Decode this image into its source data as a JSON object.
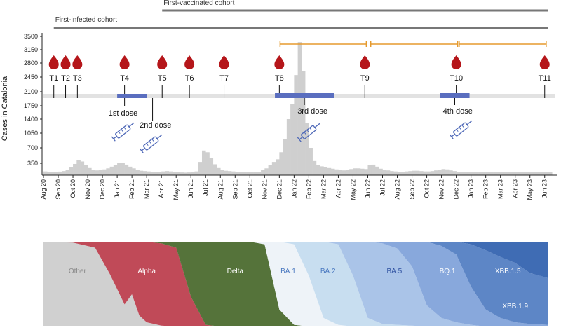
{
  "chart_data": [
    {
      "type": "bar",
      "title": "",
      "xlabel": "",
      "ylabel": "Cases in Catalonia",
      "ylim": [
        0,
        3500
      ],
      "y_ticks": [
        350,
        700,
        1050,
        1400,
        1750,
        2100,
        2450,
        2800,
        3150,
        3500
      ],
      "x_ticks": [
        "Aug 20",
        "Sep 20",
        "Oct 20",
        "Nov 20",
        "Dec 20",
        "Jan 21",
        "Feb 21",
        "Mar 21",
        "Apr 21",
        "May 21",
        "Jun 21",
        "Jul 21",
        "Aug 21",
        "Sep 21",
        "Oct 21",
        "Nov 21",
        "Dec 21",
        "Jan 22",
        "Feb 22",
        "Mar 22",
        "Apr 22",
        "May 22",
        "Jun 22",
        "Jul 22",
        "Aug 22",
        "Sep 22",
        "Oct 22",
        "Nov 22",
        "Dec 22",
        "Jan 23",
        "Feb 23",
        "Mar 23",
        "Apr 23",
        "May 23",
        "Jun 23"
      ],
      "weekly_values": [
        [
          0.0,
          110
        ],
        [
          0.25,
          100
        ],
        [
          0.5,
          95
        ],
        [
          0.75,
          100
        ],
        [
          1.0,
          105
        ],
        [
          1.25,
          120
        ],
        [
          1.5,
          160
        ],
        [
          1.75,
          240
        ],
        [
          2.0,
          330
        ],
        [
          2.25,
          420
        ],
        [
          2.5,
          390
        ],
        [
          2.75,
          300
        ],
        [
          3.0,
          210
        ],
        [
          3.25,
          160
        ],
        [
          3.5,
          140
        ],
        [
          3.75,
          150
        ],
        [
          4.0,
          170
        ],
        [
          4.25,
          200
        ],
        [
          4.5,
          250
        ],
        [
          4.75,
          300
        ],
        [
          5.0,
          350
        ],
        [
          5.25,
          360
        ],
        [
          5.5,
          310
        ],
        [
          5.75,
          250
        ],
        [
          6.0,
          200
        ],
        [
          6.25,
          150
        ],
        [
          6.5,
          130
        ],
        [
          6.75,
          120
        ],
        [
          7.0,
          110
        ],
        [
          7.25,
          100
        ],
        [
          7.5,
          95
        ],
        [
          7.75,
          100
        ],
        [
          8.0,
          110
        ],
        [
          8.25,
          120
        ],
        [
          8.5,
          110
        ],
        [
          8.75,
          100
        ],
        [
          9.0,
          90
        ],
        [
          9.25,
          80
        ],
        [
          9.5,
          75
        ],
        [
          9.75,
          80
        ],
        [
          10.0,
          90
        ],
        [
          10.25,
          110
        ],
        [
          10.5,
          380
        ],
        [
          10.75,
          640
        ],
        [
          11.0,
          600
        ],
        [
          11.25,
          470
        ],
        [
          11.5,
          320
        ],
        [
          11.75,
          210
        ],
        [
          12.0,
          150
        ],
        [
          12.25,
          130
        ],
        [
          12.5,
          120
        ],
        [
          12.75,
          110
        ],
        [
          13.0,
          100
        ],
        [
          13.25,
          95
        ],
        [
          13.5,
          90
        ],
        [
          13.75,
          90
        ],
        [
          14.0,
          90
        ],
        [
          14.25,
          95
        ],
        [
          14.5,
          100
        ],
        [
          14.75,
          150
        ],
        [
          15.0,
          200
        ],
        [
          15.25,
          300
        ],
        [
          15.5,
          380
        ],
        [
          15.75,
          440
        ],
        [
          16.0,
          600
        ],
        [
          16.25,
          900
        ],
        [
          16.5,
          1400
        ],
        [
          16.75,
          1800
        ],
        [
          17.0,
          2500
        ],
        [
          17.25,
          3350
        ],
        [
          17.5,
          2600
        ],
        [
          17.75,
          1300
        ],
        [
          18.0,
          700
        ],
        [
          18.25,
          400
        ],
        [
          18.5,
          300
        ],
        [
          18.75,
          260
        ],
        [
          19.0,
          230
        ],
        [
          19.25,
          210
        ],
        [
          19.5,
          190
        ],
        [
          19.75,
          170
        ],
        [
          20.0,
          150
        ],
        [
          20.25,
          140
        ],
        [
          20.5,
          150
        ],
        [
          20.75,
          180
        ],
        [
          21.0,
          200
        ],
        [
          21.25,
          200
        ],
        [
          21.5,
          190
        ],
        [
          21.75,
          180
        ],
        [
          22.0,
          300
        ],
        [
          22.25,
          310
        ],
        [
          22.5,
          250
        ],
        [
          22.75,
          190
        ],
        [
          23.0,
          160
        ],
        [
          23.25,
          140
        ],
        [
          23.5,
          120
        ],
        [
          23.75,
          110
        ],
        [
          24.0,
          100
        ],
        [
          24.25,
          100
        ],
        [
          24.5,
          110
        ],
        [
          24.75,
          120
        ],
        [
          25.0,
          130
        ],
        [
          25.25,
          130
        ],
        [
          25.5,
          120
        ],
        [
          25.75,
          110
        ],
        [
          26.0,
          110
        ],
        [
          26.25,
          120
        ],
        [
          26.5,
          140
        ],
        [
          26.75,
          160
        ],
        [
          27.0,
          180
        ],
        [
          27.25,
          170
        ],
        [
          27.5,
          140
        ],
        [
          27.75,
          120
        ],
        [
          28.0,
          100
        ],
        [
          28.25,
          100
        ],
        [
          28.5,
          100
        ],
        [
          28.75,
          100
        ],
        [
          29.0,
          100
        ],
        [
          29.25,
          100
        ],
        [
          29.5,
          100
        ],
        [
          29.75,
          100
        ],
        [
          30.0,
          100
        ],
        [
          30.25,
          100
        ],
        [
          30.5,
          100
        ],
        [
          30.75,
          100
        ],
        [
          31.0,
          100
        ],
        [
          31.25,
          100
        ],
        [
          31.5,
          100
        ],
        [
          31.75,
          100
        ],
        [
          32.0,
          100
        ],
        [
          32.25,
          100
        ],
        [
          32.5,
          100
        ],
        [
          32.75,
          100
        ],
        [
          33.0,
          100
        ],
        [
          33.25,
          100
        ],
        [
          33.5,
          100
        ],
        [
          33.75,
          100
        ],
        [
          34.0,
          100
        ],
        [
          34.25,
          100
        ]
      ],
      "sampling_points": [
        {
          "label": "T1",
          "month": 0.7
        },
        {
          "label": "T2",
          "month": 1.5
        },
        {
          "label": "T3",
          "month": 2.3
        },
        {
          "label": "T4",
          "month": 5.5
        },
        {
          "label": "T5",
          "month": 8.05
        },
        {
          "label": "T6",
          "month": 9.9
        },
        {
          "label": "T7",
          "month": 12.25
        },
        {
          "label": "T8",
          "month": 16.0
        },
        {
          "label": "T9",
          "month": 21.8
        },
        {
          "label": "T10",
          "month": 28.0
        },
        {
          "label": "T11",
          "month": 34.0
        }
      ],
      "cohorts": [
        {
          "label": "First-infected cohort",
          "start_month": 0.7,
          "end_month": 34.25
        },
        {
          "label": "First-vaccinated cohort",
          "start_month": 8.05,
          "end_month": 34.25
        }
      ],
      "followup_intervals": [
        {
          "start_month": 16.05,
          "end_month": 21.9
        },
        {
          "start_month": 22.2,
          "end_month": 28.1
        },
        {
          "start_month": 28.2,
          "end_month": 34.1
        }
      ],
      "dose_periods": [
        {
          "label": "1st dose",
          "start_month": 5.0,
          "end_month": 7.0
        },
        {
          "label": "2nd dose",
          "start_month": 5.5,
          "end_month": 8.0
        },
        {
          "label": "3rd dose",
          "start_month": 15.7,
          "end_month": 19.7
        },
        {
          "label": "4th dose",
          "start_month": 26.9,
          "end_month": 28.9
        }
      ],
      "colors": {
        "bars": "#cfcfcf",
        "blood_drop": "#b5161a",
        "dose_bar": "#5a6ebf",
        "followup": "#e59a2e",
        "cohort_line": "#777777",
        "band": "#e2e2e2",
        "syringe": "#4f69b8"
      }
    },
    {
      "type": "area",
      "title": "",
      "xlabel": "",
      "ylabel": "",
      "stacked": true,
      "normalized": true,
      "x_months": [
        0,
        2,
        3.5,
        4.5,
        5.5,
        6,
        6.5,
        7,
        8,
        9,
        10,
        11,
        12,
        13,
        14,
        15,
        16,
        17,
        18,
        19,
        20,
        21,
        22,
        23,
        24,
        25,
        26,
        27,
        28,
        29,
        30,
        31,
        32,
        33,
        34.25
      ],
      "series": [
        {
          "name": "Other",
          "color": "#d0d0d0",
          "values": [
            1.0,
            0.99,
            0.93,
            0.62,
            0.26,
            0.38,
            0.13,
            0.05,
            0.01,
            0,
            0,
            0,
            0,
            0,
            0,
            0,
            0,
            0,
            0,
            0,
            0,
            0,
            0,
            0,
            0,
            0,
            0,
            0,
            0,
            0,
            0,
            0,
            0,
            0,
            0
          ]
        },
        {
          "name": "Alpha",
          "color": "#c04a58",
          "values": [
            0,
            0.01,
            0.07,
            0.38,
            0.74,
            0.62,
            0.87,
            0.95,
            0.97,
            0.93,
            0.35,
            0.02,
            0,
            0,
            0,
            0,
            0,
            0,
            0,
            0,
            0,
            0,
            0,
            0,
            0,
            0,
            0,
            0,
            0,
            0,
            0,
            0,
            0,
            0,
            0
          ]
        },
        {
          "name": "Delta",
          "color": "#55733a",
          "values": [
            0,
            0,
            0,
            0,
            0,
            0,
            0,
            0,
            0.02,
            0.07,
            0.65,
            0.98,
            1.0,
            1.0,
            1.0,
            0.97,
            0.2,
            0.02,
            0,
            0,
            0,
            0,
            0,
            0,
            0,
            0,
            0,
            0,
            0,
            0,
            0,
            0,
            0,
            0,
            0
          ]
        },
        {
          "name": "BA.1",
          "color": "#eef3f8",
          "values": [
            0,
            0,
            0,
            0,
            0,
            0,
            0,
            0,
            0,
            0,
            0,
            0,
            0,
            0,
            0,
            0.03,
            0.8,
            0.95,
            0.6,
            0.1,
            0.02,
            0,
            0,
            0,
            0,
            0,
            0,
            0,
            0,
            0,
            0,
            0,
            0,
            0,
            0
          ]
        },
        {
          "name": "BA.2",
          "color": "#c8def0",
          "values": [
            0,
            0,
            0,
            0,
            0,
            0,
            0,
            0,
            0,
            0,
            0,
            0,
            0,
            0,
            0,
            0,
            0,
            0.03,
            0.4,
            0.9,
            0.95,
            0.6,
            0.1,
            0.03,
            0.02,
            0.01,
            0,
            0,
            0,
            0,
            0,
            0,
            0,
            0,
            0
          ]
        },
        {
          "name": "BA.5",
          "color": "#aac4e8",
          "values": [
            0,
            0,
            0,
            0,
            0,
            0,
            0,
            0,
            0,
            0,
            0,
            0,
            0,
            0,
            0,
            0,
            0,
            0,
            0,
            0,
            0.03,
            0.4,
            0.9,
            0.95,
            0.9,
            0.7,
            0.25,
            0.1,
            0.05,
            0.02,
            0,
            0,
            0,
            0,
            0
          ]
        },
        {
          "name": "BQ.1",
          "color": "#88a8dc",
          "values": [
            0,
            0,
            0,
            0,
            0,
            0,
            0,
            0,
            0,
            0,
            0,
            0,
            0,
            0,
            0,
            0,
            0,
            0,
            0,
            0,
            0,
            0,
            0,
            0.02,
            0.08,
            0.29,
            0.75,
            0.85,
            0.8,
            0.45,
            0.2,
            0.1,
            0.05,
            0.03,
            0.02
          ]
        },
        {
          "name": "XBB.1.5",
          "color": "#5d86c6",
          "values": [
            0,
            0,
            0,
            0,
            0,
            0,
            0,
            0,
            0,
            0,
            0,
            0,
            0,
            0,
            0,
            0,
            0,
            0,
            0,
            0,
            0,
            0,
            0,
            0,
            0,
            0,
            0,
            0.05,
            0.15,
            0.5,
            0.7,
            0.72,
            0.7,
            0.6,
            0.55
          ]
        },
        {
          "name": "XBB.1.9",
          "color": "#3f6cb4",
          "values": [
            0,
            0,
            0,
            0,
            0,
            0,
            0,
            0,
            0,
            0,
            0,
            0,
            0,
            0,
            0,
            0,
            0,
            0,
            0,
            0,
            0,
            0,
            0,
            0,
            0,
            0,
            0,
            0,
            0,
            0.03,
            0.1,
            0.18,
            0.25,
            0.37,
            0.43
          ]
        }
      ],
      "visible_labels": [
        {
          "name": "Other",
          "month": 2.3,
          "color": "#888888"
        },
        {
          "name": "Alpha",
          "month": 7.0,
          "color": "#ffffff"
        },
        {
          "name": "Delta",
          "month": 13.0,
          "color": "#ffffff"
        },
        {
          "name": "BA.1",
          "month": 16.6,
          "color": "#4a78c0"
        },
        {
          "name": "BA.2",
          "month": 19.3,
          "color": "#4a78c0"
        },
        {
          "name": "BA.5",
          "month": 23.8,
          "color": "#2d4fa0"
        },
        {
          "name": "BQ.1",
          "month": 27.4,
          "color": "#ffffff"
        },
        {
          "name": "XBB.1.5",
          "month": 31.5,
          "color": "#ffffff"
        },
        {
          "name": "XBB.1.9",
          "month": 32.0,
          "color": "#ffffff"
        }
      ]
    }
  ]
}
